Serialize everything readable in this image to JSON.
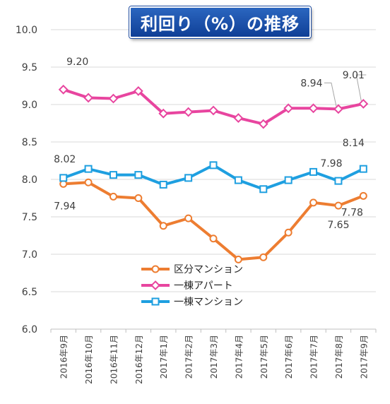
{
  "chart_data": {
    "type": "line",
    "title": "利回り（%）の推移",
    "categories": [
      "2016年9月",
      "2016年10月",
      "2016年11月",
      "2016年12月",
      "2017年1月",
      "2017年2月",
      "2017年3月",
      "2017年4月",
      "2017年5月",
      "2017年6月",
      "2017年7月",
      "2017年8月",
      "2017年9月"
    ],
    "ylim": [
      6.0,
      10.0
    ],
    "yticks": [
      "6.0",
      "6.5",
      "7.0",
      "7.5",
      "8.0",
      "8.5",
      "9.0",
      "9.5",
      "10.0"
    ],
    "grid": true,
    "legend_position": "center-left",
    "series": [
      {
        "name": "区分マンション",
        "color": "#ed7d31",
        "marker": "circle",
        "values": [
          7.94,
          7.96,
          7.77,
          7.75,
          7.38,
          7.48,
          7.21,
          6.93,
          6.96,
          7.29,
          7.69,
          7.65,
          7.78
        ]
      },
      {
        "name": "一棟アパート",
        "color": "#e8459f",
        "marker": "diamond",
        "values": [
          9.2,
          9.09,
          9.08,
          9.18,
          8.88,
          8.9,
          8.92,
          8.82,
          8.74,
          8.95,
          8.95,
          8.94,
          9.01
        ]
      },
      {
        "name": "一棟マンション",
        "color": "#1e9fe0",
        "marker": "square",
        "values": [
          8.02,
          8.14,
          8.06,
          8.06,
          7.93,
          8.02,
          8.19,
          7.99,
          7.87,
          7.99,
          8.1,
          7.98,
          8.14
        ]
      }
    ],
    "annotations": [
      {
        "series": 1,
        "index": 0,
        "text": "9.20"
      },
      {
        "series": 1,
        "index": 11,
        "text": "8.94"
      },
      {
        "series": 1,
        "index": 12,
        "text": "9.01"
      },
      {
        "series": 2,
        "index": 0,
        "text": "8.02"
      },
      {
        "series": 2,
        "index": 11,
        "text": "7.98"
      },
      {
        "series": 2,
        "index": 12,
        "text": "8.14"
      },
      {
        "series": 0,
        "index": 0,
        "text": "7.94"
      },
      {
        "series": 0,
        "index": 11,
        "text": "7.65"
      },
      {
        "series": 0,
        "index": 12,
        "text": "7.78"
      }
    ]
  }
}
